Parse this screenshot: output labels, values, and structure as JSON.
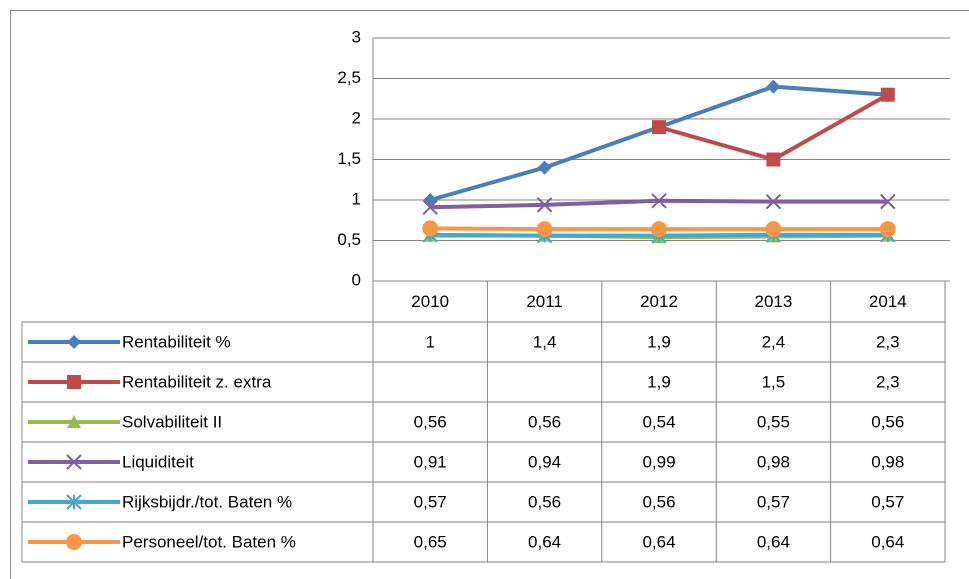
{
  "chart_data": {
    "type": "line",
    "categories": [
      "2010",
      "2011",
      "2012",
      "2013",
      "2014"
    ],
    "ylim": [
      0,
      3
    ],
    "yticks": [
      0,
      {
        "value": 0.5,
        "label": "0,5"
      },
      1,
      {
        "value": 1.5,
        "label": "1,5"
      },
      2,
      {
        "value": 2.5,
        "label": "2,5"
      },
      3
    ],
    "grid": true,
    "series": [
      {
        "name": "Rentabiliteit %",
        "color": "#4a7ebb",
        "marker": "diamond",
        "values": [
          1,
          1.4,
          1.9,
          2.4,
          2.3
        ],
        "value_labels": [
          "1",
          "1,4",
          "1,9",
          "2,4",
          "2,3"
        ]
      },
      {
        "name": "Rentabiliteit z. extra",
        "color": "#be4b48",
        "marker": "square",
        "values": [
          null,
          null,
          1.9,
          1.5,
          2.3
        ],
        "value_labels": [
          null,
          null,
          "1,9",
          "1,5",
          "2,3"
        ]
      },
      {
        "name": "Solvabiliteit II",
        "color": "#98b954",
        "marker": "triangle",
        "values": [
          0.56,
          0.56,
          0.54,
          0.55,
          0.56
        ],
        "value_labels": [
          "0,56",
          "0,56",
          "0,54",
          "0,55",
          "0,56"
        ]
      },
      {
        "name": "Liquiditeit",
        "color": "#7d60a0",
        "marker": "x",
        "values": [
          0.91,
          0.94,
          0.99,
          0.98,
          0.98
        ],
        "value_labels": [
          "0,91",
          "0,94",
          "0,99",
          "0,98",
          "0,98"
        ]
      },
      {
        "name": "Rijksbijdr./tot. Baten %",
        "color": "#46aac5",
        "marker": "star",
        "values": [
          0.57,
          0.56,
          0.56,
          0.57,
          0.57
        ],
        "value_labels": [
          "0,57",
          "0,56",
          "0,56",
          "0,57",
          "0,57"
        ]
      },
      {
        "name": "Personeel/tot. Baten %",
        "color": "#f79646",
        "marker": "circle",
        "values": [
          0.65,
          0.64,
          0.64,
          0.64,
          0.64
        ],
        "value_labels": [
          "0,65",
          "0,64",
          "0,64",
          "0,64",
          "0,64"
        ]
      }
    ]
  }
}
